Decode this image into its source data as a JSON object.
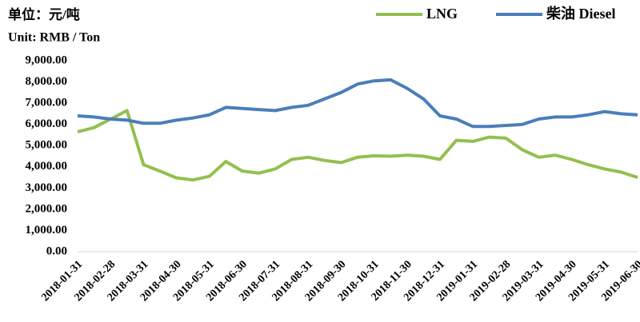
{
  "chart_data": {
    "type": "line",
    "title": "单位：元/吨",
    "subtitle": "Unit: RMB / Ton",
    "categories": [
      "2018-01-31",
      null,
      "2018-02-28",
      null,
      "2018-03-31",
      null,
      "2018-04-30",
      null,
      "2018-05-31",
      null,
      "2018-06-30",
      null,
      "2018-07-31",
      null,
      "2018-08-31",
      null,
      "2018-09-30",
      null,
      "2018-10-31",
      null,
      "2018-11-30",
      null,
      "2018-12-31",
      null,
      "2019-01-31",
      null,
      "2019-02-28",
      null,
      "2019-03-31",
      null,
      "2019-04-30",
      null,
      "2019-05-31",
      null,
      "2019-06-30"
    ],
    "series": [
      {
        "name": "LNG",
        "color": "#92c050",
        "values": [
          5650,
          5850,
          6250,
          6650,
          4100,
          3800,
          3480,
          3380,
          3550,
          4250,
          3800,
          3700,
          3900,
          4350,
          4450,
          4300,
          4200,
          4450,
          4520,
          4500,
          4550,
          4500,
          4350,
          5250,
          5200,
          5400,
          5350,
          4800,
          4450,
          4550,
          4350,
          4100,
          3900,
          3750,
          3500
        ]
      },
      {
        "name": "柴油 Diesel",
        "color": "#4a7ebb",
        "values": [
          6400,
          6350,
          6250,
          6200,
          6050,
          6050,
          6200,
          6300,
          6450,
          6800,
          6750,
          6700,
          6650,
          6800,
          6900,
          7200,
          7500,
          7900,
          8050,
          8100,
          7700,
          7200,
          6400,
          6250,
          5900,
          5900,
          5950,
          6000,
          6250,
          6350,
          6350,
          6450,
          6600,
          6500,
          6450
        ]
      }
    ],
    "ylim": [
      0,
      9000
    ],
    "yticks": [
      {
        "value": 0,
        "label": "0.00"
      },
      {
        "value": 1000,
        "label": "1,000.00"
      },
      {
        "value": 2000,
        "label": "2,000.00"
      },
      {
        "value": 3000,
        "label": "3,000.00"
      },
      {
        "value": 4000,
        "label": "4,000.00"
      },
      {
        "value": 5000,
        "label": "5,000.00"
      },
      {
        "value": 6000,
        "label": "6,000.00"
      },
      {
        "value": 7000,
        "label": "7,000.00"
      },
      {
        "value": 8000,
        "label": "8,000.00"
      },
      {
        "value": 9000,
        "label": "9,000.00"
      }
    ],
    "grid": false,
    "legend": "top"
  }
}
